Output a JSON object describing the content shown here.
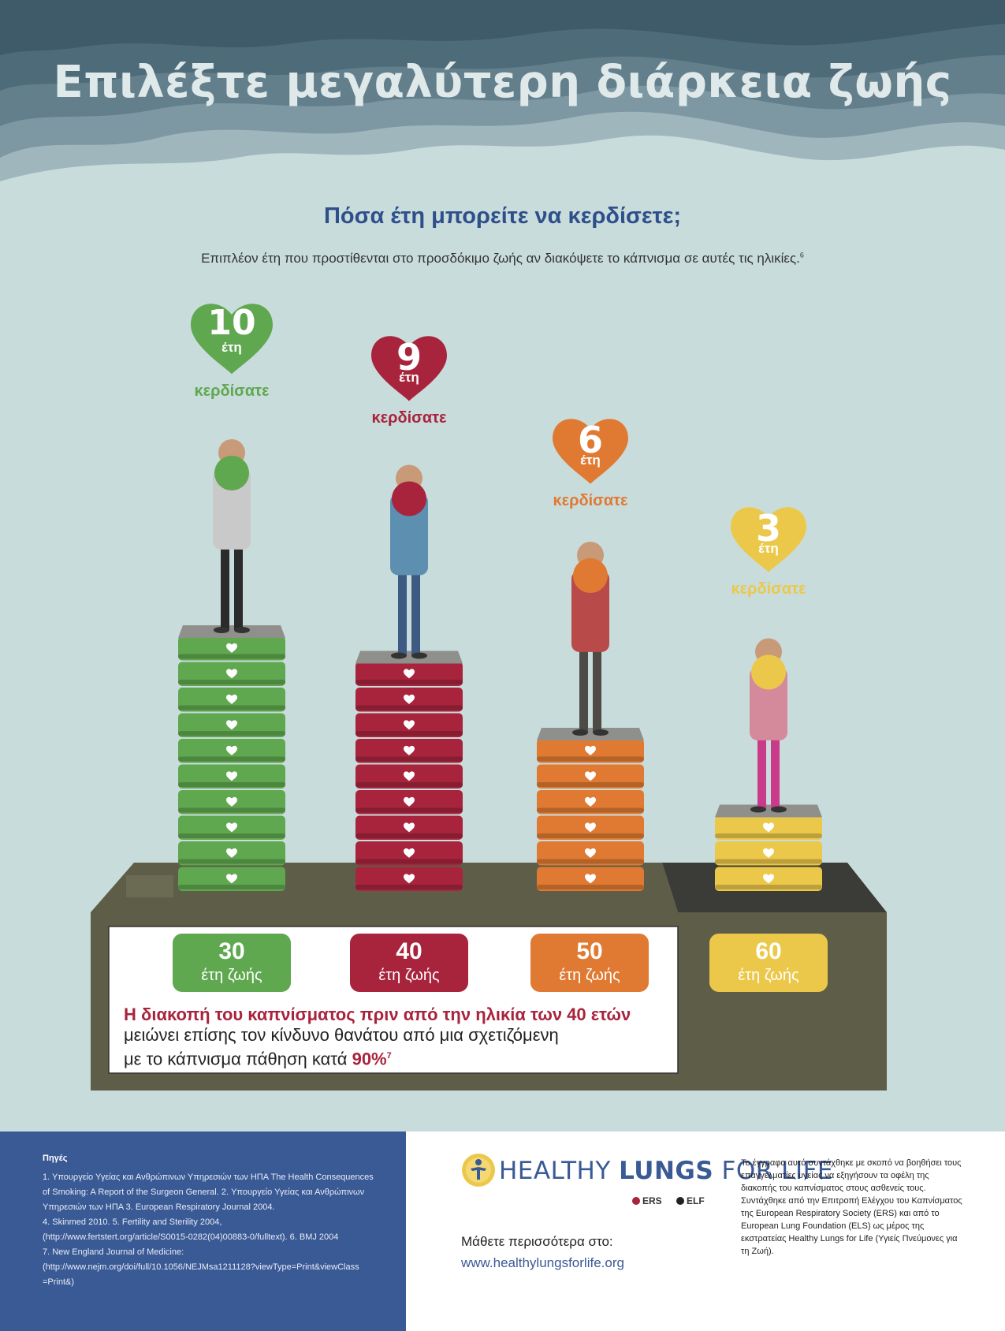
{
  "title": "Επιλέξτε μεγαλύτερη διάρκεια ζωής",
  "subtitle": "Πόσα έτη μπορείτε να κερδίσετε;",
  "intro": "Επιπλέον έτη που προστίθενται στο προσδόκιμο ζωής αν διακόψετε το κάπνισμα σε αυτές τις ηλικίες.",
  "intro_ref": "6",
  "colors": {
    "green": "#5fa84f",
    "red": "#a8243d",
    "orange": "#e07a32",
    "yellow": "#ecc84a",
    "navy": "#3a5a96"
  },
  "columns": [
    {
      "years": "10",
      "unit": "έτη",
      "gained": "κερδίσατε",
      "age": "30",
      "age_label": "έτη ζωής",
      "color": "#5fa84f",
      "boxes": 10
    },
    {
      "years": "9",
      "unit": "έτη",
      "gained": "κερδίσατε",
      "age": "40",
      "age_label": "έτη ζωής",
      "color": "#a8243d",
      "boxes": 9
    },
    {
      "years": "6",
      "unit": "έτη",
      "gained": "κερδίσατε",
      "age": "50",
      "age_label": "έτη ζωής",
      "color": "#e07a32",
      "boxes": 6
    },
    {
      "years": "3",
      "unit": "έτη",
      "gained": "κερδίσατε",
      "age": "60",
      "age_label": "έτη ζωής",
      "color": "#ecc84a",
      "boxes": 3
    }
  ],
  "message": {
    "line1": "Η διακοπή του καπνίσματος πριν από την ηλικία των 40 ετών",
    "line2": "μειώνει επίσης τον κίνδυνο θανάτου από μια σχετιζόμενη",
    "line3": "με το κάπνισμα πάθηση κατά ",
    "percent": "90%",
    "ref": "7"
  },
  "sources": {
    "title": "Πηγές",
    "lines": [
      "1. Υπουργείο Υγείας και Ανθρώπινων Υπηρεσιών των ΗΠΑ The Health Consequences",
      "of Smoking: A Report of the Surgeon General. 2. Υπουργείο Υγείας και Ανθρώπινων",
      "Υπηρεσιών των ΗΠΑ 3. European Respiratory Journal 2004.",
      "4. Skinmed 2010. 5. Fertility and Sterility 2004,",
      "(http://www.fertstert.org/article/S0015-0282(04)00883-0/fulltext). 6. BMJ 2004",
      "7. New England Journal of Medicine:",
      "(http://www.nejm.org/doi/full/10.1056/NEJMsa1211128?viewType=Print&viewClass",
      "=Print&)"
    ]
  },
  "logo": {
    "word1": "HEALTHY ",
    "word2": "LUNGS",
    "word3": " FOR LIFE",
    "partner1": "ERS",
    "partner2": "ELF"
  },
  "learn_more": "Μάθετε περισσότερα στο:",
  "website": "www.healthylungsforlife.org",
  "about": "Το έγγραφο αυτό συντάχθηκε με σκοπό να βοηθήσει τους επαγγελματίες υγείας να εξηγήσουν τα οφέλη της διακοπής του καπνίσματος στους ασθενείς τους. Συντάχθηκε από την Επιτροπή Ελέγχου του Καπνίσματος της European Respiratory Society (ERS) και από το European Lung Foundation (ELS) ως μέρος της εκστρατείας Healthy Lungs for Life (Υγιείς Πνεύμονες για τη Ζωή)."
}
